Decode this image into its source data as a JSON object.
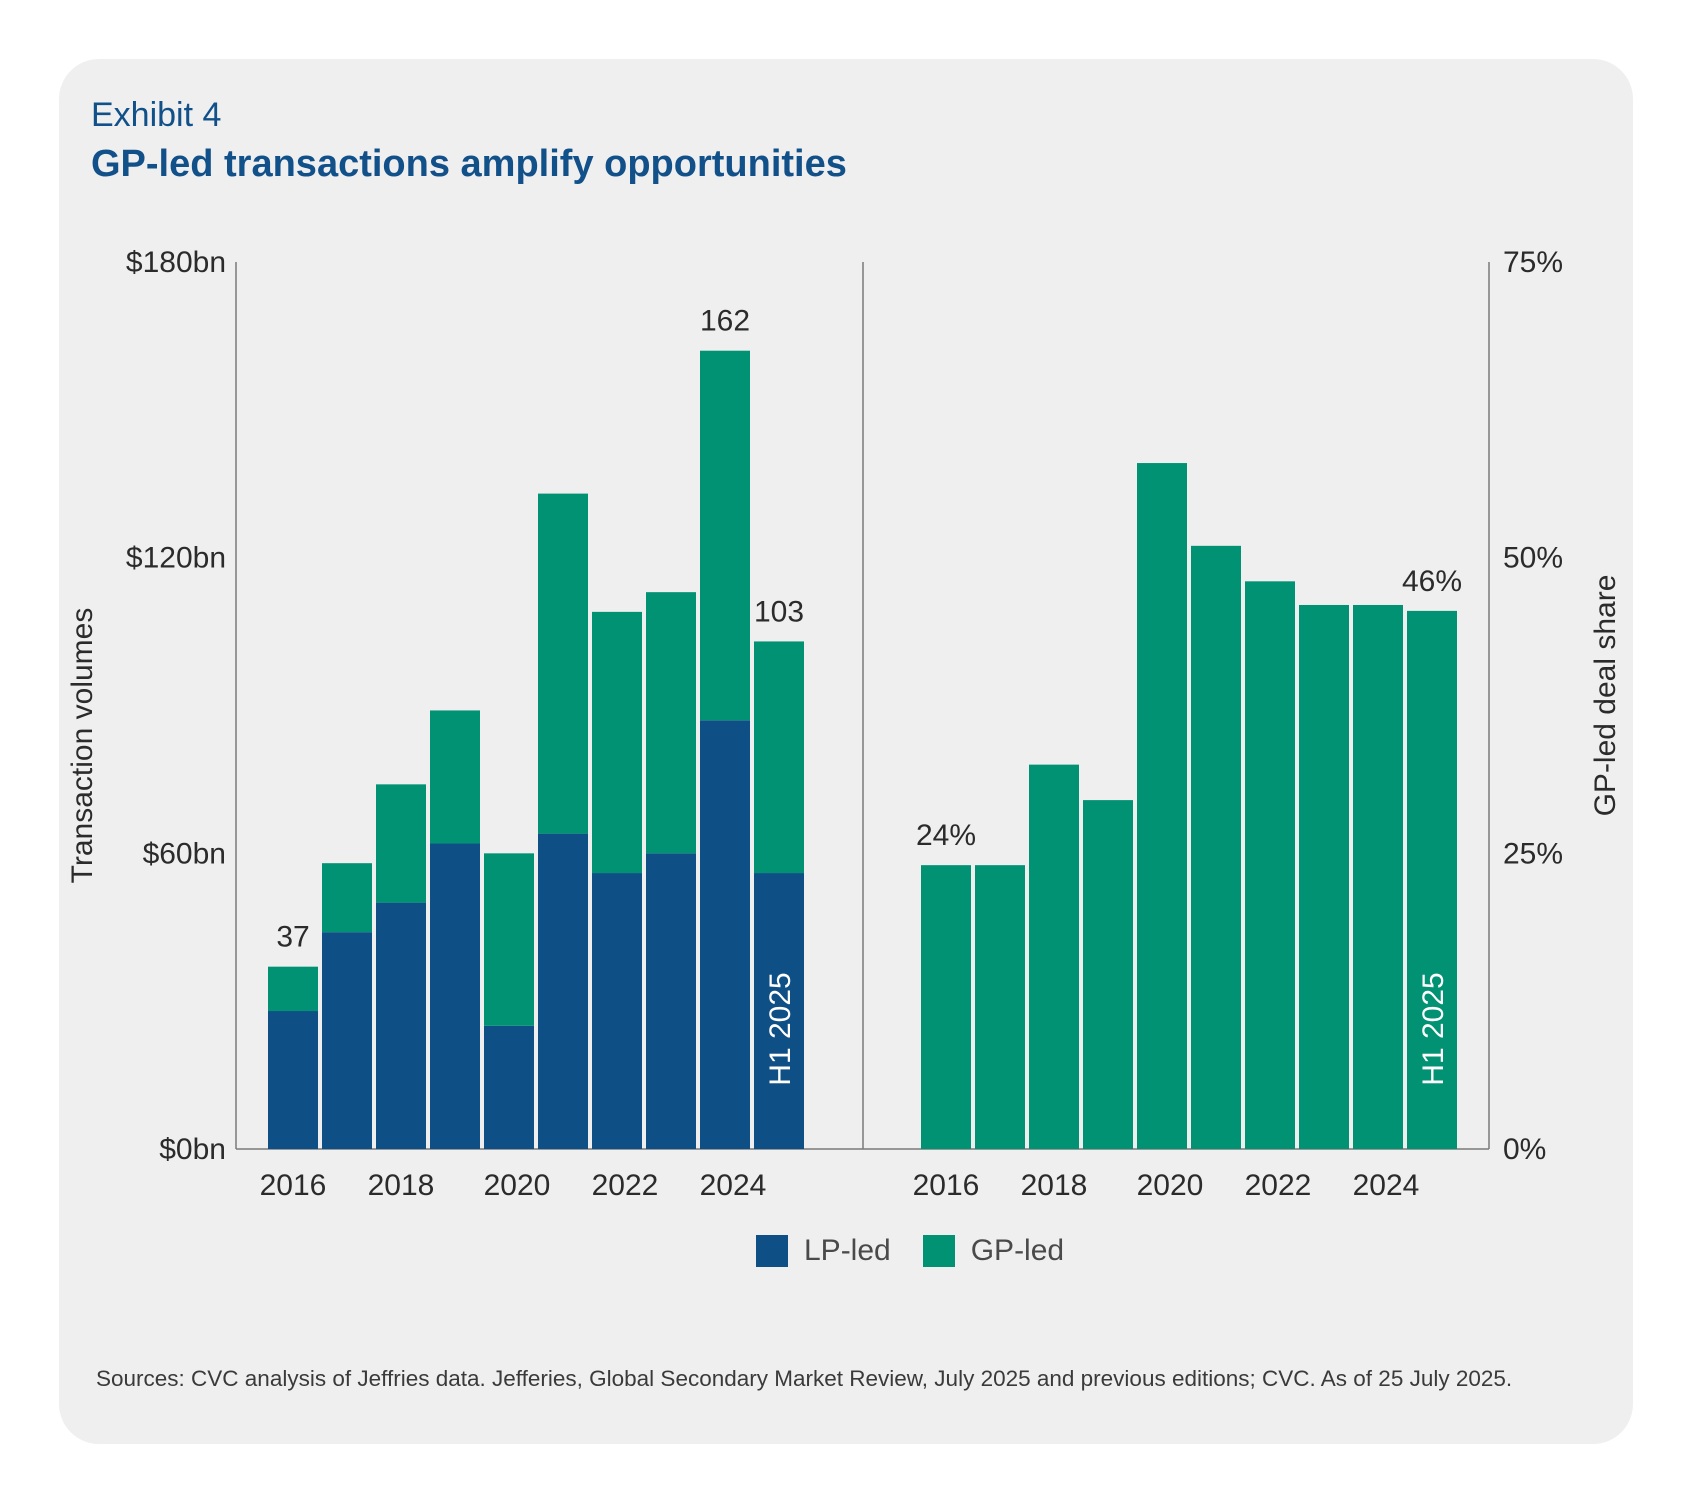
{
  "header": {
    "exhibit": "Exhibit 4",
    "title": "GP-led transactions amplify opportunities"
  },
  "colors": {
    "lp_led": "#0e4f86",
    "gp_led": "#009272",
    "title": "#12508a",
    "axis": "#7a7a7a",
    "text": "#2b2b2b",
    "card_bg": "#efefef"
  },
  "chart_data": [
    {
      "type": "bar",
      "stacked": true,
      "title": "",
      "xlabel": "",
      "ylabel": "Transaction volumes",
      "ylim": [
        0,
        180
      ],
      "yticks": [
        0,
        60,
        120,
        180
      ],
      "ytick_labels": [
        "$0bn",
        "$60bn",
        "$120bn",
        "$180bn"
      ],
      "categories": [
        "2016",
        "2017",
        "2018",
        "2019",
        "2020",
        "2021",
        "2022",
        "2023",
        "2024",
        "H1 2025"
      ],
      "xtick_labels": [
        {
          "category_index": 0,
          "label": "2016"
        },
        {
          "category_index": 2,
          "label": "2018"
        },
        {
          "category_index": 4,
          "label": "2020"
        },
        {
          "category_index": 6,
          "label": "2022"
        },
        {
          "category_index": 8,
          "label": "2024"
        }
      ],
      "series": [
        {
          "name": "LP-led",
          "color": "#0e4f86",
          "values": [
            28,
            44,
            50,
            62,
            25,
            64,
            56,
            60,
            87,
            56
          ]
        },
        {
          "name": "GP-led",
          "color": "#009272",
          "values": [
            9,
            14,
            24,
            27,
            35,
            69,
            53,
            53,
            75,
            47
          ]
        }
      ],
      "data_labels": [
        {
          "category_index": 0,
          "text": "37"
        },
        {
          "category_index": 8,
          "text": "162"
        },
        {
          "category_index": 9,
          "text": "103"
        }
      ],
      "bar_annotations": [
        {
          "category_index": 9,
          "text": "H1 2025",
          "orientation": "vertical"
        }
      ],
      "axis_side": "left",
      "grid": false
    },
    {
      "type": "bar",
      "title": "",
      "xlabel": "",
      "ylabel": "GP-led deal share",
      "ylim": [
        0,
        75
      ],
      "yticks": [
        0,
        25,
        50,
        75
      ],
      "ytick_labels": [
        "0%",
        "25%",
        "50%",
        "75%"
      ],
      "categories": [
        "2016",
        "2017",
        "2018",
        "2019",
        "2020",
        "2021",
        "2022",
        "2023",
        "2024",
        "H1 2025"
      ],
      "xtick_labels": [
        {
          "category_index": 0,
          "label": "2016"
        },
        {
          "category_index": 2,
          "label": "2018"
        },
        {
          "category_index": 4,
          "label": "2020"
        },
        {
          "category_index": 6,
          "label": "2022"
        },
        {
          "category_index": 8,
          "label": "2024"
        }
      ],
      "series": [
        {
          "name": "GP-led deal share",
          "color": "#009272",
          "values": [
            24,
            24,
            32.5,
            29.5,
            58,
            51,
            48,
            46,
            46,
            45.5
          ]
        }
      ],
      "data_labels": [
        {
          "category_index": 0,
          "text": "24%"
        },
        {
          "category_index": 9,
          "text": "46%"
        }
      ],
      "bar_annotations": [
        {
          "category_index": 9,
          "text": "H1 2025",
          "orientation": "vertical"
        }
      ],
      "axis_side": "right",
      "grid": false
    }
  ],
  "legend": {
    "position": "bottom-center",
    "items": [
      {
        "label": "LP-led",
        "color": "#0e4f86"
      },
      {
        "label": "GP-led",
        "color": "#009272"
      }
    ]
  },
  "footer": {
    "source": "Sources: CVC analysis of Jeffries data. Jefferies, Global Secondary Market Review, July 2025 and previous editions; CVC. As of 25 July 2025."
  }
}
